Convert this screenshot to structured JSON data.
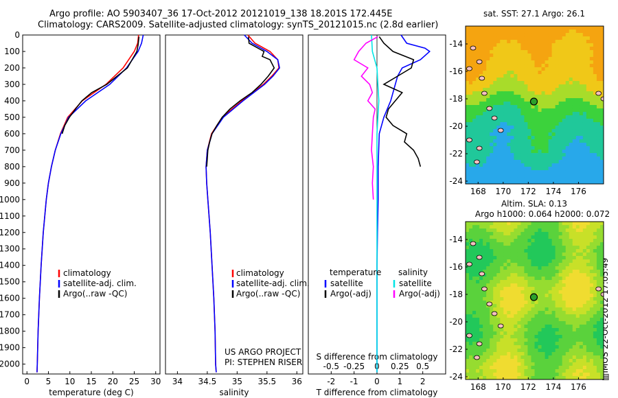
{
  "header": {
    "line1": "Argo profile: AO 5903407_36 17-Oct-2012 20121019_138 18.201S 172.445E",
    "line2": "Climatology: CARS2009. Satellite-adjusted climatology: synTS_20121015.nc (2.8d earlier)"
  },
  "stamp": "▥IMOS 22-Oct-2012 17:05:49",
  "colors": {
    "clim": "#ff0000",
    "sat": "#0000ff",
    "argo": "#000000",
    "sal_sat": "#00e5e5",
    "sal_argo": "#ff00ff",
    "float": "#2ca02c"
  },
  "chart_data": [
    {
      "type": "line",
      "title": "",
      "xlabel": "temperature (deg C)",
      "ylabel": "",
      "xlim": [
        -1,
        31
      ],
      "ylim": [
        2060,
        0
      ],
      "xticks": [
        "0",
        "5",
        "10",
        "15",
        "20",
        "25",
        "30"
      ],
      "yticks": [
        "0",
        "100",
        "200",
        "300",
        "400",
        "500",
        "600",
        "700",
        "800",
        "900",
        "1000",
        "1100",
        "1200",
        "1300",
        "1400",
        "1500",
        "1600",
        "1700",
        "1800",
        "1900",
        "2000"
      ],
      "legend": [
        "climatology",
        "satellite-adj. clim.",
        "Argo(..raw -QC)"
      ],
      "series": [
        {
          "name": "climatology",
          "depth": [
            0,
            50,
            100,
            200,
            300,
            400,
            500,
            600,
            700,
            800,
            900,
            1000,
            1200,
            1400,
            1600,
            1800,
            2000,
            2050
          ],
          "values": [
            26.0,
            25.8,
            25.0,
            22.4,
            18.4,
            12.9,
            9.5,
            7.8,
            6.6,
            5.7,
            5.0,
            4.5,
            3.8,
            3.3,
            2.9,
            2.6,
            2.4,
            2.35
          ]
        },
        {
          "name": "satellite-adj. clim.",
          "depth": [
            0,
            50,
            100,
            200,
            300,
            400,
            500,
            600,
            700,
            800,
            900,
            1000,
            1200,
            1400,
            1600,
            1800,
            2000,
            2050
          ],
          "values": [
            27.1,
            26.7,
            25.9,
            23.2,
            19.3,
            13.7,
            9.7,
            7.9,
            6.6,
            5.7,
            5.0,
            4.5,
            3.8,
            3.3,
            2.9,
            2.6,
            2.4,
            2.35
          ]
        },
        {
          "name": "Argo(..raw -QC)",
          "depth": [
            10,
            60,
            100,
            150,
            200,
            250,
            300,
            350,
            400,
            450,
            500,
            550,
            600
          ],
          "values": [
            26.1,
            25.9,
            25.6,
            24.5,
            23.4,
            21.0,
            18.6,
            15.1,
            12.8,
            11.3,
            9.9,
            8.8,
            8.2
          ]
        }
      ]
    },
    {
      "type": "line",
      "title": "",
      "xlabel": "salinity",
      "ylabel": "",
      "xlim": [
        33.8,
        36.1
      ],
      "ylim": [
        2060,
        0
      ],
      "xticks": [
        "34",
        "34.5",
        "35",
        "35.5",
        "36"
      ],
      "legend": [
        "climatology",
        "satellite-adj. clim.",
        "Argo(..raw -QC)"
      ],
      "annotation": [
        "US ARGO PROJECT",
        "PI: STEPHEN RISER"
      ],
      "series": [
        {
          "name": "climatology",
          "depth": [
            0,
            50,
            100,
            150,
            200,
            250,
            300,
            400,
            500,
            600,
            700,
            800,
            900,
            1000,
            1200,
            1400,
            1600,
            1800,
            2000,
            2050
          ],
          "values": [
            35.18,
            35.3,
            35.55,
            35.68,
            35.7,
            35.58,
            35.44,
            35.08,
            34.75,
            34.57,
            34.5,
            34.48,
            34.49,
            34.51,
            34.55,
            34.58,
            34.61,
            34.63,
            34.64,
            34.65
          ]
        },
        {
          "name": "satellite-adj. clim.",
          "depth": [
            0,
            50,
            100,
            150,
            200,
            250,
            300,
            400,
            500,
            600,
            700,
            800,
            900,
            1000,
            1200,
            1400,
            1600,
            1800,
            2000,
            2050
          ],
          "values": [
            35.12,
            35.25,
            35.5,
            35.68,
            35.71,
            35.6,
            35.46,
            35.1,
            34.77,
            34.58,
            34.5,
            34.48,
            34.49,
            34.51,
            34.55,
            34.58,
            34.61,
            34.63,
            34.64,
            34.65
          ]
        },
        {
          "name": "Argo(..raw -QC)",
          "depth": [
            10,
            50,
            100,
            130,
            150,
            200,
            250,
            300,
            350,
            400,
            450,
            500,
            550,
            600,
            650,
            700,
            750,
            800
          ],
          "values": [
            35.19,
            35.2,
            35.45,
            35.42,
            35.55,
            35.62,
            35.52,
            35.4,
            35.25,
            35.05,
            34.88,
            34.75,
            34.66,
            34.58,
            34.54,
            34.51,
            34.5,
            34.49
          ]
        }
      ]
    },
    {
      "type": "line",
      "title": "",
      "xlabel": "T difference from climatology",
      "xlabel2": "S difference from climatology",
      "xlim": [
        -3,
        3
      ],
      "ylim": [
        2060,
        0
      ],
      "xticks": [
        "-2",
        "-1",
        "0",
        "1",
        "2"
      ],
      "xticks_s": [
        "-0.5",
        "-0.25",
        "0",
        "0.25",
        "0.5"
      ],
      "legend_titles": [
        "temperature",
        "salinity"
      ],
      "legend": [
        "satellite",
        "Argo(-adj)",
        "satellite",
        "Argo(-adj)"
      ],
      "series": [
        {
          "name": "temperature satellite",
          "depth": [
            0,
            50,
            80,
            100,
            150,
            200,
            250,
            300,
            400,
            500,
            600,
            800,
            1000,
            1200,
            1400,
            1600,
            1800,
            2050
          ],
          "values": [
            1.05,
            1.3,
            2.1,
            2.3,
            1.9,
            1.1,
            0.9,
            0.8,
            0.6,
            0.3,
            0.1,
            0.05,
            0.05,
            0.02,
            0.0,
            0.0,
            0.0,
            0.0
          ]
        },
        {
          "name": "temperature Argo(-adj)",
          "depth": [
            10,
            50,
            100,
            150,
            200,
            250,
            300,
            350,
            400,
            450,
            500,
            550,
            600,
            650,
            700,
            750,
            800
          ],
          "values": [
            0.1,
            0.3,
            0.7,
            1.6,
            1.5,
            0.9,
            0.3,
            1.1,
            0.8,
            0.5,
            0.4,
            0.7,
            1.3,
            1.2,
            1.6,
            1.8,
            1.9
          ]
        },
        {
          "name": "salinity satellite",
          "depth": [
            0,
            100,
            200,
            300,
            400,
            500,
            600,
            800,
            1000,
            1200,
            1600,
            2050
          ],
          "values": [
            -0.06,
            -0.05,
            0.0,
            0.01,
            0.02,
            0.01,
            0.0,
            0.0,
            0.0,
            0.0,
            0.0,
            0.0
          ]
        },
        {
          "name": "salinity Argo(-adj)",
          "depth": [
            10,
            50,
            100,
            150,
            200,
            250,
            300,
            350,
            400,
            450,
            500,
            600,
            700,
            800,
            900,
            1000
          ],
          "values": [
            0.01,
            -0.12,
            -0.2,
            -0.25,
            -0.1,
            -0.17,
            -0.08,
            -0.05,
            -0.1,
            -0.02,
            -0.04,
            -0.05,
            -0.06,
            -0.04,
            -0.05,
            -0.04
          ]
        }
      ]
    },
    {
      "type": "heatmap",
      "title": "sat. SST: 27.1  Argo: 26.1",
      "xlim": [
        167,
        178
      ],
      "ylim": [
        -24.2,
        -12.7
      ],
      "xticks": [
        "168",
        "170",
        "172",
        "174",
        "176"
      ],
      "yticks": [
        "-14",
        "-16",
        "-18",
        "-20",
        "-22",
        "-24"
      ],
      "marker": {
        "lon": 172.445,
        "lat": -18.201
      }
    },
    {
      "type": "heatmap",
      "title": "Altim. SLA: 0.13",
      "subtitle": "Argo h1000: 0.064 h2000: 0.072",
      "xlim": [
        167,
        178
      ],
      "ylim": [
        -24.2,
        -12.7
      ],
      "xticks": [
        "168",
        "170",
        "172",
        "174",
        "176"
      ],
      "yticks": [
        "-14",
        "-16",
        "-18",
        "-20",
        "-22",
        "-24"
      ],
      "marker": {
        "lon": 172.445,
        "lat": -18.201
      }
    }
  ]
}
